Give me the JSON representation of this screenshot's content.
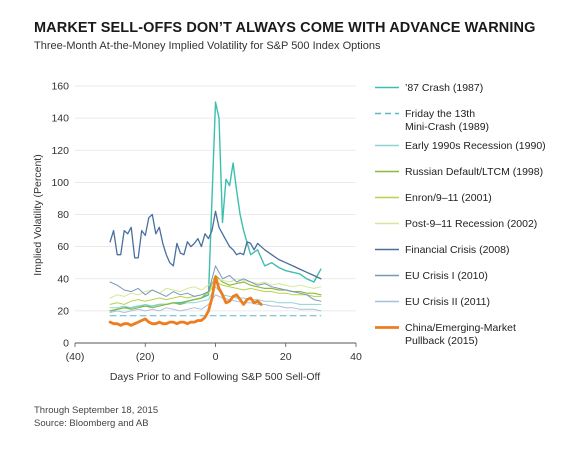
{
  "header": {
    "title": "MARKET SELL-OFFS DON’T ALWAYS COME WITH ADVANCE WARNING",
    "subtitle": "Three-Month At-the-Money Implied Volatility for S&P 500 Index Options"
  },
  "footer": {
    "line1": "Through September 18, 2015",
    "line2": "Source: Bloomberg and AB"
  },
  "chart_data": {
    "type": "line",
    "xlabel": "Days Prior to and Following S&P 500 Sell-Off",
    "ylabel": "Implied Volatility (Percent)",
    "xlim": [
      -40,
      40
    ],
    "ylim": [
      0,
      160
    ],
    "x_ticks": [
      -40,
      -20,
      0,
      20,
      40
    ],
    "x_tick_labels": [
      "(40)",
      "(20)",
      "0",
      "20",
      "40"
    ],
    "y_ticks": [
      0,
      20,
      40,
      60,
      80,
      100,
      120,
      140,
      160
    ],
    "legend_position": "right",
    "series": [
      {
        "name": "’87 Crash (1987)",
        "color": "#3dbfad",
        "dash": "solid",
        "width": 1.4,
        "x": [
          -30,
          -28,
          -26,
          -24,
          -22,
          -20,
          -18,
          -16,
          -14,
          -12,
          -10,
          -8,
          -6,
          -4,
          -2,
          0,
          1,
          2,
          3,
          4,
          5,
          6,
          7,
          8,
          10,
          12,
          14,
          16,
          18,
          20,
          22,
          24,
          26,
          28,
          30
        ],
        "y": [
          20,
          21,
          22,
          22,
          23,
          23,
          23,
          24,
          24,
          25,
          25,
          26,
          27,
          28,
          30,
          150,
          140,
          75,
          102,
          98,
          112,
          95,
          80,
          70,
          55,
          58,
          48,
          50,
          47,
          45,
          44,
          43,
          40,
          38,
          46
        ]
      },
      {
        "name": "Friday the 13th Mini-Crash (1989)",
        "color": "#5bb8c7",
        "dash": "dashed",
        "width": 1.0,
        "x": [
          -30,
          -20,
          -10,
          0,
          10,
          20,
          30
        ],
        "y": [
          17,
          17,
          17,
          17,
          17,
          17,
          17
        ]
      },
      {
        "name": "Early 1990s Recession (1990)",
        "color": "#8fd3d1",
        "dash": "solid",
        "width": 1.0,
        "x": [
          -30,
          -28,
          -26,
          -24,
          -22,
          -20,
          -18,
          -16,
          -14,
          -12,
          -10,
          -8,
          -6,
          -4,
          -2,
          0,
          2,
          4,
          6,
          8,
          10,
          12,
          14,
          16,
          18,
          20,
          22,
          24,
          26,
          28,
          30
        ],
        "y": [
          22,
          22,
          23,
          22,
          23,
          24,
          23,
          24,
          24,
          25,
          24,
          25,
          25,
          26,
          27,
          35,
          30,
          29,
          28,
          28,
          27,
          27,
          26,
          26,
          25,
          25,
          25,
          24,
          24,
          24,
          24
        ]
      },
      {
        "name": "Russian Default/LTCM (1998)",
        "color": "#8dba3d",
        "dash": "solid",
        "width": 1.2,
        "x": [
          -30,
          -28,
          -26,
          -24,
          -22,
          -20,
          -18,
          -16,
          -14,
          -12,
          -10,
          -8,
          -6,
          -4,
          -2,
          0,
          2,
          4,
          6,
          8,
          10,
          12,
          14,
          16,
          18,
          20,
          22,
          24,
          26,
          28,
          30
        ],
        "y": [
          20,
          21,
          22,
          21,
          22,
          23,
          22,
          23,
          24,
          25,
          24,
          26,
          27,
          28,
          32,
          42,
          38,
          36,
          37,
          38,
          36,
          35,
          34,
          34,
          33,
          33,
          32,
          32,
          31,
          31,
          30
        ]
      },
      {
        "name": "Enron/9–11 (2001)",
        "color": "#b5d34d",
        "dash": "solid",
        "width": 1.0,
        "x": [
          -30,
          -28,
          -26,
          -24,
          -22,
          -20,
          -18,
          -16,
          -14,
          -12,
          -10,
          -8,
          -6,
          -4,
          -2,
          0,
          2,
          4,
          6,
          8,
          10,
          12,
          14,
          16,
          18,
          20,
          22,
          24,
          26,
          28,
          30
        ],
        "y": [
          24,
          25,
          24,
          26,
          27,
          26,
          27,
          28,
          27,
          28,
          29,
          28,
          29,
          30,
          31,
          38,
          36,
          35,
          34,
          33,
          34,
          33,
          32,
          32,
          31,
          31,
          30,
          30,
          30,
          29,
          29
        ]
      },
      {
        "name": "Post-9–11 Recession (2002)",
        "color": "#d6e69a",
        "dash": "solid",
        "width": 1.0,
        "x": [
          -30,
          -28,
          -26,
          -24,
          -22,
          -20,
          -18,
          -16,
          -14,
          -12,
          -10,
          -8,
          -6,
          -4,
          -2,
          0,
          2,
          4,
          6,
          8,
          10,
          12,
          14,
          16,
          18,
          20,
          22,
          24,
          26,
          28,
          30
        ],
        "y": [
          28,
          30,
          29,
          31,
          30,
          32,
          33,
          31,
          34,
          33,
          32,
          34,
          35,
          33,
          36,
          40,
          39,
          38,
          40,
          39,
          38,
          37,
          38,
          36,
          37,
          36,
          35,
          36,
          35,
          34,
          35
        ]
      },
      {
        "name": "Financial Crisis (2008)",
        "color": "#4a6f9e",
        "dash": "solid",
        "width": 1.3,
        "x": [
          -30,
          -29,
          -28,
          -27,
          -26,
          -25,
          -24,
          -23,
          -22,
          -21,
          -20,
          -19,
          -18,
          -17,
          -16,
          -15,
          -14,
          -13,
          -12,
          -11,
          -10,
          -9,
          -8,
          -7,
          -6,
          -5,
          -4,
          -3,
          -2,
          -1,
          0,
          1,
          2,
          3,
          4,
          5,
          6,
          7,
          8,
          9,
          10,
          11,
          12,
          14,
          16,
          18,
          20,
          22,
          24,
          26,
          28,
          30
        ],
        "y": [
          63,
          70,
          55,
          55,
          70,
          68,
          72,
          53,
          53,
          70,
          67,
          78,
          80,
          68,
          72,
          62,
          55,
          50,
          48,
          62,
          56,
          55,
          63,
          60,
          62,
          65,
          60,
          68,
          65,
          70,
          82,
          72,
          68,
          64,
          60,
          58,
          55,
          56,
          55,
          63,
          62,
          58,
          62,
          58,
          55,
          52,
          50,
          48,
          46,
          44,
          42,
          40
        ]
      },
      {
        "name": "EU Crisis I (2010)",
        "color": "#7a96bd",
        "dash": "solid",
        "width": 1.0,
        "x": [
          -30,
          -28,
          -26,
          -24,
          -22,
          -20,
          -18,
          -16,
          -14,
          -12,
          -10,
          -8,
          -6,
          -4,
          -2,
          0,
          2,
          4,
          6,
          8,
          10,
          12,
          14,
          16,
          18,
          20,
          22,
          24,
          26,
          28,
          30
        ],
        "y": [
          38,
          36,
          33,
          32,
          34,
          30,
          33,
          31,
          29,
          32,
          30,
          31,
          29,
          30,
          32,
          48,
          40,
          42,
          38,
          40,
          38,
          36,
          37,
          35,
          34,
          33,
          32,
          31,
          30,
          27,
          26
        ]
      },
      {
        "name": "EU Crisis II (2011)",
        "color": "#a8bfdc",
        "dash": "solid",
        "width": 1.0,
        "x": [
          -30,
          -28,
          -26,
          -24,
          -22,
          -20,
          -18,
          -16,
          -14,
          -12,
          -10,
          -8,
          -6,
          -4,
          -2,
          0,
          2,
          4,
          6,
          8,
          10,
          12,
          14,
          16,
          18,
          20,
          22,
          24,
          26,
          28,
          30
        ],
        "y": [
          19,
          20,
          19,
          20,
          21,
          20,
          21,
          20,
          22,
          21,
          20,
          21,
          22,
          21,
          24,
          30,
          28,
          27,
          26,
          25,
          25,
          24,
          24,
          23,
          23,
          22,
          22,
          21,
          21,
          21,
          20
        ]
      },
      {
        "name": "China/Emerging-Market Pullback (2015)",
        "color": "#ee7d1f",
        "dash": "solid",
        "width": 2.8,
        "x": [
          -30,
          -29,
          -28,
          -27,
          -26,
          -25,
          -24,
          -23,
          -22,
          -21,
          -20,
          -19,
          -18,
          -17,
          -16,
          -15,
          -14,
          -13,
          -12,
          -11,
          -10,
          -9,
          -8,
          -7,
          -6,
          -5,
          -4,
          -3,
          -2,
          -1,
          0,
          1,
          2,
          3,
          4,
          5,
          6,
          7,
          8,
          9,
          10,
          11,
          12,
          13
        ],
        "y": [
          13,
          12,
          12,
          11,
          12,
          12,
          11,
          12,
          13,
          14,
          15,
          13,
          12,
          12,
          13,
          12,
          12,
          13,
          13,
          12,
          13,
          13,
          12,
          13,
          13,
          14,
          14,
          16,
          20,
          28,
          41,
          34,
          30,
          25,
          26,
          29,
          30,
          27,
          24,
          27,
          28,
          25,
          26,
          24
        ]
      }
    ]
  },
  "legend": {
    "entries": [
      {
        "lines": [
          "’87 Crash (1987)"
        ],
        "series": 0
      },
      {
        "lines": [
          "Friday the 13th",
          "Mini-Crash (1989)"
        ],
        "series": 1
      },
      {
        "lines": [
          "Early 1990s Recession (1990)"
        ],
        "series": 2
      },
      {
        "lines": [
          "Russian Default/LTCM (1998)"
        ],
        "series": 3
      },
      {
        "lines": [
          "Enron/9–11 (2001)"
        ],
        "series": 4
      },
      {
        "lines": [
          "Post-9–11 Recession (2002)"
        ],
        "series": 5
      },
      {
        "lines": [
          "Financial Crisis (2008)"
        ],
        "series": 6
      },
      {
        "lines": [
          "EU Crisis I (2010)"
        ],
        "series": 7
      },
      {
        "lines": [
          "EU Crisis II (2011)"
        ],
        "series": 8
      },
      {
        "lines": [
          "China/Emerging-Market",
          "Pullback (2015)"
        ],
        "series": 9
      }
    ]
  }
}
